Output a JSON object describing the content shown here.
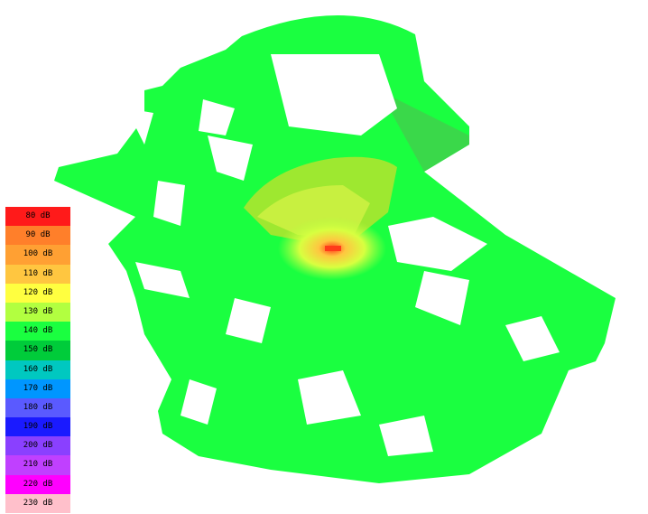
{
  "map": {
    "type": "signal-coverage-heatmap",
    "dominant_level": "140 dB",
    "transmitter_level": "80 dB"
  },
  "legend": {
    "items": [
      {
        "label": "80 dB",
        "color": "#ff1a1a"
      },
      {
        "label": "90 dB",
        "color": "#ff7f2a"
      },
      {
        "label": "100 dB",
        "color": "#ffa033"
      },
      {
        "label": "110 dB",
        "color": "#ffc640"
      },
      {
        "label": "120 dB",
        "color": "#ffff40"
      },
      {
        "label": "130 dB",
        "color": "#b2ff40"
      },
      {
        "label": "140 dB",
        "color": "#1aff40"
      },
      {
        "label": "150 dB",
        "color": "#00cc3a"
      },
      {
        "label": "160 dB",
        "color": "#00c8c0"
      },
      {
        "label": "170 dB",
        "color": "#0096ff"
      },
      {
        "label": "180 dB",
        "color": "#5a5aff"
      },
      {
        "label": "190 dB",
        "color": "#1a1aff"
      },
      {
        "label": "200 dB",
        "color": "#8a40ff"
      },
      {
        "label": "210 dB",
        "color": "#c040ff"
      },
      {
        "label": "220 dB",
        "color": "#ff00ff"
      },
      {
        "label": "230 dB",
        "color": "#ffc0cb"
      }
    ]
  }
}
